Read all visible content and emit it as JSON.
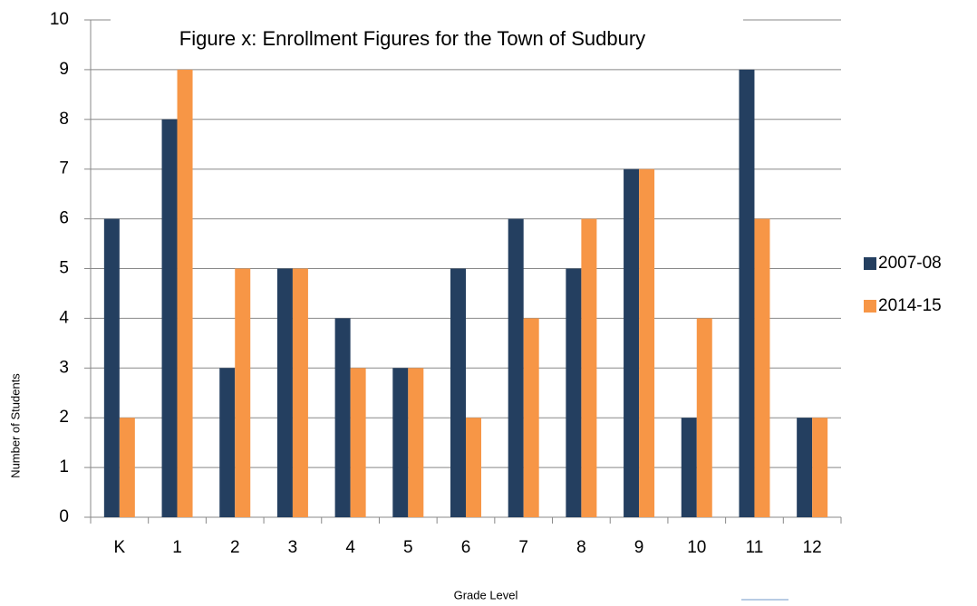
{
  "chart_data": {
    "type": "bar",
    "title": "Figure x: Enrollment Figures for the Town of Sudbury",
    "x_label": "Grade Level",
    "y_label": "Number of Students",
    "categories": [
      "K",
      "1",
      "2",
      "3",
      "4",
      "5",
      "6",
      "7",
      "8",
      "9",
      "10",
      "11",
      "12"
    ],
    "series": [
      {
        "name": "2007-08",
        "color": "#243f60",
        "values": [
          6,
          8,
          3,
          5,
          4,
          3,
          5,
          6,
          5,
          7,
          2,
          9,
          2
        ]
      },
      {
        "name": "2014-15",
        "color": "#f79646",
        "values": [
          2,
          9,
          5,
          5,
          3,
          3,
          2,
          4,
          6,
          7,
          4,
          6,
          2
        ]
      }
    ],
    "ylim": [
      0,
      10
    ],
    "yticks": [
      0,
      1,
      2,
      3,
      4,
      5,
      6,
      7,
      8,
      9,
      10
    ],
    "grid": true,
    "legend": "right"
  }
}
